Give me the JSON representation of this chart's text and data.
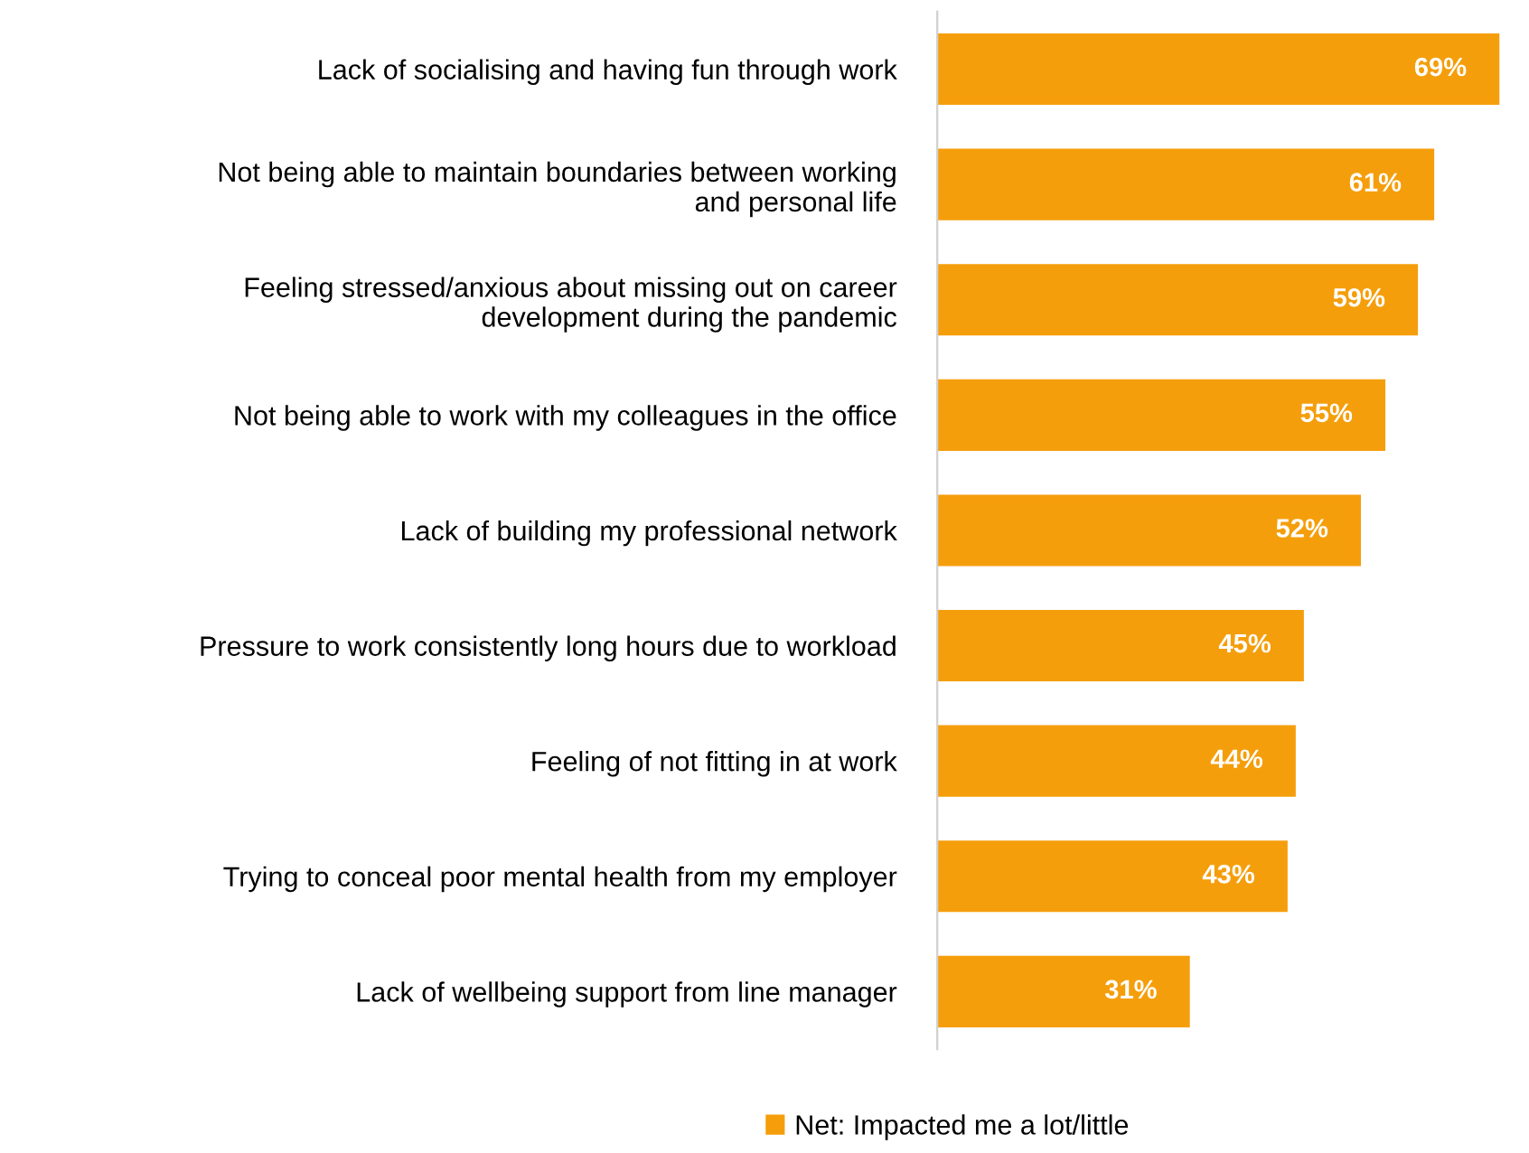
{
  "chart_data": {
    "type": "bar",
    "orientation": "horizontal",
    "categories": [
      "Lack of socialising and having fun through work",
      "Not being able to maintain boundaries between working\nand personal life",
      "Feeling stressed/anxious about missing out on career\ndevelopment during the pandemic",
      "Not being able to work with my colleagues in the office",
      "Lack of building my professional network",
      "Pressure to work consistently long hours due to workload",
      "Feeling of not fitting in at work",
      "Trying to conceal poor mental health from my employer",
      "Lack of wellbeing support from line manager"
    ],
    "series": [
      {
        "name": "Net: Impacted me a lot/little",
        "color": "#f59e0b",
        "values": [
          69,
          61,
          59,
          55,
          52,
          45,
          44,
          43,
          31
        ],
        "value_labels": [
          "69%",
          "61%",
          "59%",
          "55%",
          "52%",
          "45%",
          "44%",
          "43%",
          "31%"
        ]
      }
    ],
    "legend": "bottom"
  }
}
